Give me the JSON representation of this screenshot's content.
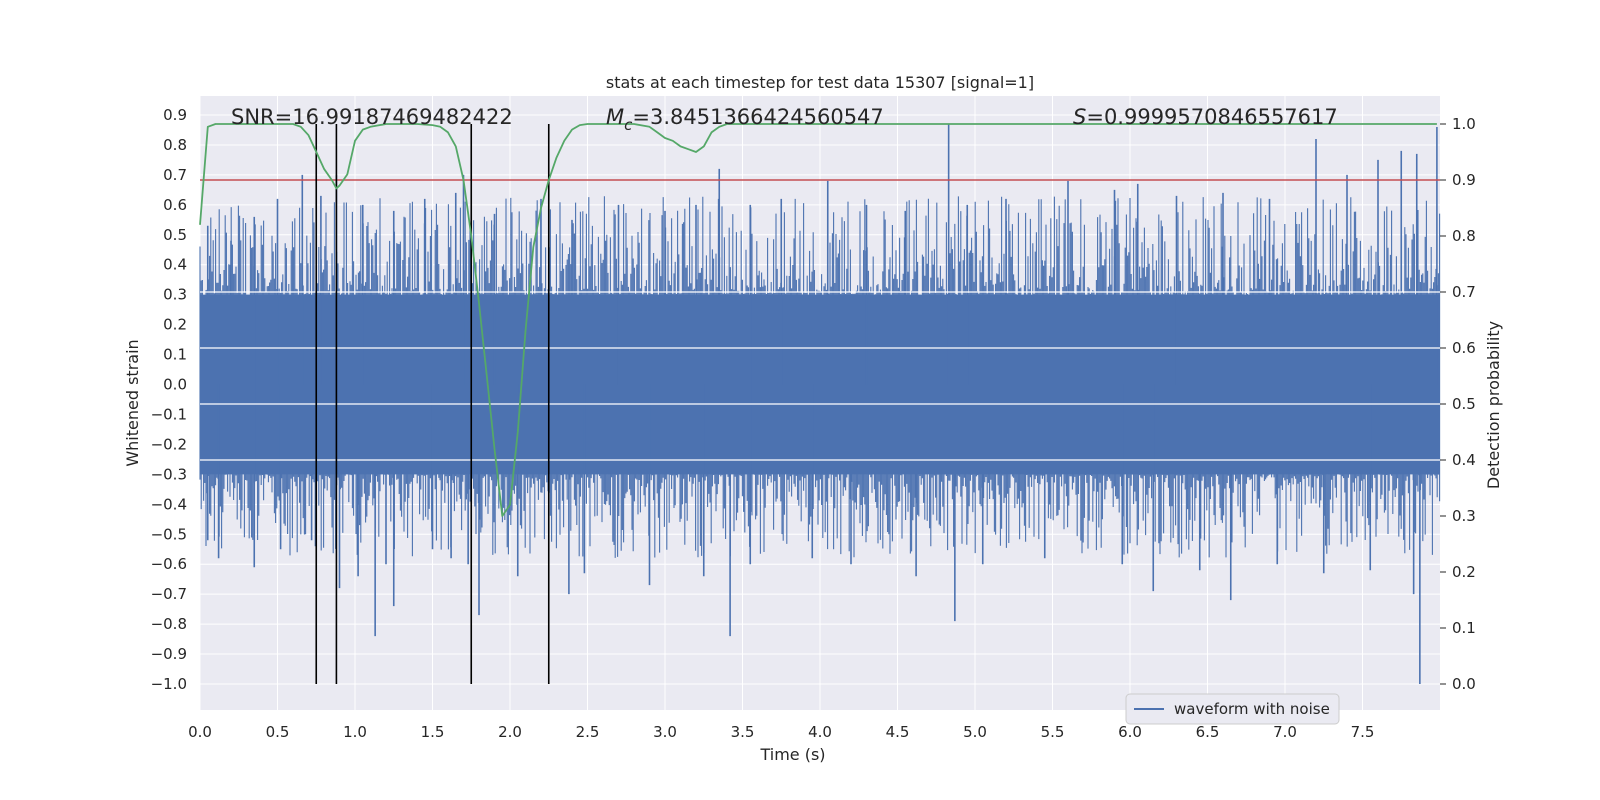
{
  "chart_data": {
    "type": "line",
    "title": "stats at each timestep for test data 15307 [signal=1]",
    "xlabel": "Time (s)",
    "ylabel": "Whitened strain",
    "ylabel_right": "Detection probability",
    "xlim": [
      0.0,
      8.0
    ],
    "ylim": [
      -1.0,
      0.9
    ],
    "ylim_right": [
      0.0,
      1.0
    ],
    "x_ticks": [
      "0.0",
      "0.5",
      "1.0",
      "1.5",
      "2.0",
      "2.5",
      "3.0",
      "3.5",
      "4.0",
      "4.5",
      "5.0",
      "5.5",
      "6.0",
      "6.5",
      "7.0",
      "7.5"
    ],
    "x_tick_values": [
      0.0,
      0.5,
      1.0,
      1.5,
      2.0,
      2.5,
      3.0,
      3.5,
      4.0,
      4.5,
      5.0,
      5.5,
      6.0,
      6.5,
      7.0,
      7.5
    ],
    "y_ticks": [
      "0.9",
      "0.8",
      "0.7",
      "0.6",
      "0.5",
      "0.4",
      "0.3",
      "0.2",
      "0.1",
      "0.0",
      "−0.1",
      "−0.2",
      "−0.3",
      "−0.4",
      "−0.5",
      "−0.6",
      "−0.7",
      "−0.8",
      "−0.9",
      "−1.0"
    ],
    "y_tick_values": [
      0.9,
      0.8,
      0.7,
      0.6,
      0.5,
      0.4,
      0.3,
      0.2,
      0.1,
      0.0,
      -0.1,
      -0.2,
      -0.3,
      -0.4,
      -0.5,
      -0.6,
      -0.7,
      -0.8,
      -0.9,
      -1.0
    ],
    "y_right_ticks": [
      "1.0",
      "0.9",
      "0.8",
      "0.7",
      "0.6",
      "0.5",
      "0.4",
      "0.3",
      "0.2",
      "0.1",
      "0.0"
    ],
    "y_right_tick_values": [
      1.0,
      0.9,
      0.8,
      0.7,
      0.6,
      0.5,
      0.4,
      0.3,
      0.2,
      0.1,
      0.0
    ],
    "annotations": {
      "snr": "SNR=16.99187469482422",
      "mc_symbol": "M",
      "mc_sub": "c",
      "mc_value": "=3.8451366424560547",
      "s_symbol": "S",
      "s_value": "=0.9999570846557617"
    },
    "legend": {
      "label": "waveform with noise",
      "location": "lower-right"
    },
    "noise_series": {
      "name": "waveform with noise",
      "color": "#4c72b0",
      "band": [
        -0.3,
        0.3
      ],
      "upper_spikes": [
        [
          0.05,
          0.53
        ],
        [
          0.2,
          0.48
        ],
        [
          0.35,
          0.56
        ],
        [
          0.5,
          0.62
        ],
        [
          0.66,
          0.7
        ],
        [
          0.78,
          0.63
        ],
        [
          0.88,
          0.7
        ],
        [
          1.05,
          0.6
        ],
        [
          1.25,
          0.58
        ],
        [
          1.45,
          0.62
        ],
        [
          1.65,
          0.64
        ],
        [
          1.7,
          0.7
        ],
        [
          1.9,
          0.57
        ],
        [
          2.2,
          0.62
        ],
        [
          2.4,
          0.55
        ],
        [
          2.7,
          0.6
        ],
        [
          3.0,
          0.58
        ],
        [
          3.2,
          0.6
        ],
        [
          3.35,
          0.72
        ],
        [
          3.55,
          0.6
        ],
        [
          3.75,
          0.62
        ],
        [
          4.05,
          0.68
        ],
        [
          4.3,
          0.6
        ],
        [
          4.55,
          0.58
        ],
        [
          4.83,
          0.87
        ],
        [
          4.95,
          0.6
        ],
        [
          5.2,
          0.62
        ],
        [
          5.6,
          0.68
        ],
        [
          5.9,
          0.65
        ],
        [
          6.05,
          0.67
        ],
        [
          6.3,
          0.63
        ],
        [
          6.6,
          0.64
        ],
        [
          6.9,
          0.62
        ],
        [
          7.2,
          0.82
        ],
        [
          7.4,
          0.7
        ],
        [
          7.6,
          0.75
        ],
        [
          7.75,
          0.78
        ],
        [
          7.85,
          0.77
        ],
        [
          7.98,
          0.86
        ]
      ],
      "lower_spikes": [
        [
          0.05,
          -0.52
        ],
        [
          0.12,
          -0.58
        ],
        [
          0.35,
          -0.61
        ],
        [
          0.52,
          -0.55
        ],
        [
          0.72,
          -0.52
        ],
        [
          0.9,
          -0.68
        ],
        [
          1.02,
          -0.64
        ],
        [
          1.13,
          -0.84
        ],
        [
          1.2,
          -0.6
        ],
        [
          1.25,
          -0.74
        ],
        [
          1.5,
          -0.55
        ],
        [
          1.62,
          -0.58
        ],
        [
          1.73,
          -0.6
        ],
        [
          1.8,
          -0.77
        ],
        [
          2.05,
          -0.64
        ],
        [
          2.38,
          -0.7
        ],
        [
          2.48,
          -0.63
        ],
        [
          2.9,
          -0.67
        ],
        [
          3.25,
          -0.64
        ],
        [
          3.42,
          -0.84
        ],
        [
          3.55,
          -0.6
        ],
        [
          3.95,
          -0.58
        ],
        [
          4.2,
          -0.6
        ],
        [
          4.62,
          -0.64
        ],
        [
          4.87,
          -0.79
        ],
        [
          5.05,
          -0.6
        ],
        [
          5.45,
          -0.58
        ],
        [
          5.95,
          -0.6
        ],
        [
          6.15,
          -0.69
        ],
        [
          6.45,
          -0.62
        ],
        [
          6.65,
          -0.72
        ],
        [
          6.95,
          -0.6
        ],
        [
          7.25,
          -0.63
        ],
        [
          7.55,
          -0.62
        ],
        [
          7.83,
          -0.7
        ],
        [
          7.87,
          -1.0
        ]
      ]
    },
    "probability_series": {
      "name": "detection probability",
      "color": "#55a868",
      "x": [
        0.0,
        0.05,
        0.1,
        0.2,
        0.3,
        0.4,
        0.5,
        0.6,
        0.65,
        0.7,
        0.75,
        0.8,
        0.85,
        0.88,
        0.9,
        0.95,
        1.0,
        1.05,
        1.1,
        1.2,
        1.3,
        1.4,
        1.5,
        1.55,
        1.6,
        1.65,
        1.7,
        1.75,
        1.8,
        1.85,
        1.9,
        1.95,
        2.0,
        2.05,
        2.1,
        2.15,
        2.2,
        2.25,
        2.3,
        2.35,
        2.4,
        2.45,
        2.5,
        2.6,
        2.7,
        2.8,
        2.9,
        2.95,
        3.0,
        3.05,
        3.1,
        3.15,
        3.2,
        3.25,
        3.3,
        3.35,
        3.4,
        3.5,
        3.6,
        3.8,
        4.0,
        4.5,
        5.0,
        5.5,
        6.0,
        6.5,
        7.0,
        7.5,
        7.98
      ],
      "y": [
        0.82,
        0.995,
        1.0,
        1.0,
        1.0,
        1.0,
        1.0,
        1.0,
        0.995,
        0.98,
        0.95,
        0.92,
        0.9,
        0.885,
        0.89,
        0.91,
        0.97,
        0.99,
        0.995,
        1.0,
        1.0,
        1.0,
        0.998,
        0.995,
        0.985,
        0.96,
        0.9,
        0.8,
        0.68,
        0.55,
        0.42,
        0.3,
        0.32,
        0.45,
        0.63,
        0.78,
        0.85,
        0.9,
        0.94,
        0.97,
        0.99,
        0.998,
        1.0,
        1.0,
        1.0,
        1.0,
        0.995,
        0.985,
        0.975,
        0.97,
        0.96,
        0.955,
        0.95,
        0.96,
        0.985,
        0.995,
        1.0,
        1.0,
        1.0,
        1.0,
        1.0,
        1.0,
        1.0,
        1.0,
        1.0,
        1.0,
        1.0,
        1.0,
        1.0
      ]
    },
    "threshold": {
      "value": 0.9,
      "axis": "right",
      "color": "#c44e52"
    },
    "vertical_markers": {
      "x": [
        0.75,
        0.88,
        1.75,
        2.25
      ],
      "color": "#000000"
    },
    "h_white_lines_right": [
      0.4,
      0.5,
      0.6,
      0.7
    ]
  }
}
